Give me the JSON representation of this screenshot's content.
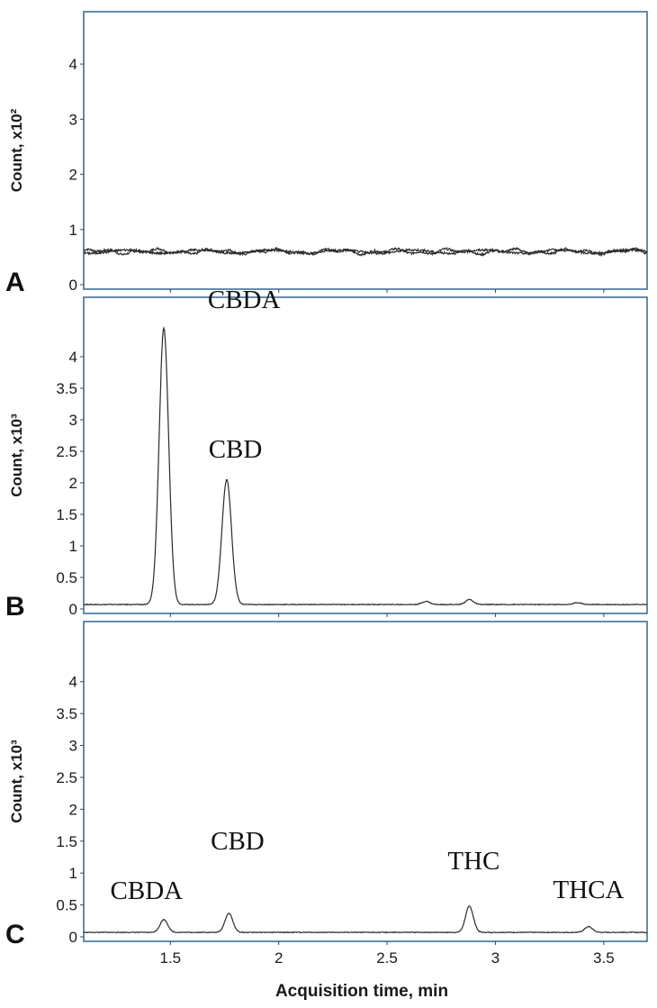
{
  "chart_data": [
    {
      "type": "line",
      "panel_letter": "A",
      "ylabel": "Count, x10²",
      "xlabel": "",
      "xlim": [
        1.1,
        3.7
      ],
      "ylim": [
        0,
        4.9
      ],
      "yticks": [
        "0",
        "1",
        "2",
        "3",
        "4"
      ],
      "ytick_values": [
        0,
        1,
        2,
        3,
        4
      ],
      "baseline": 0.6,
      "peaks": [],
      "series": [
        {
          "values": "flat noisy baseline ~0.6"
        }
      ]
    },
    {
      "type": "line",
      "panel_letter": "B",
      "ylabel": "Count, x10³",
      "xlabel": "",
      "xlim": [
        1.1,
        3.7
      ],
      "ylim": [
        0,
        4.9
      ],
      "yticks": [
        "0",
        "0.5",
        "1",
        "1.5",
        "2",
        "2.5",
        "3",
        "3.5",
        "4"
      ],
      "ytick_values": [
        0,
        0.5,
        1,
        1.5,
        2,
        2.5,
        3,
        3.5,
        4
      ],
      "baseline": 0.07,
      "peaks": [
        {
          "label": "CBDA",
          "x": 1.47,
          "y": 4.45
        },
        {
          "label": "CBD",
          "x": 1.76,
          "y": 2.05
        },
        {
          "label": "",
          "x": 2.68,
          "y": 0.12
        },
        {
          "label": "",
          "x": 2.88,
          "y": 0.15
        },
        {
          "label": "",
          "x": 3.38,
          "y": 0.1
        }
      ]
    },
    {
      "type": "line",
      "panel_letter": "C",
      "ylabel": "Count, x10³",
      "xlabel": "Acquisition time, min",
      "xlim": [
        1.1,
        3.7
      ],
      "ylim": [
        0,
        4.9
      ],
      "yticks": [
        "0",
        "0.5",
        "1",
        "1.5",
        "2",
        "2.5",
        "3",
        "3.5",
        "4"
      ],
      "ytick_values": [
        0,
        0.5,
        1,
        1.5,
        2,
        2.5,
        3,
        3.5,
        4
      ],
      "xticks": [
        "1.5",
        "2",
        "2.5",
        "3",
        "3.5"
      ],
      "xtick_values": [
        1.5,
        2,
        2.5,
        3,
        3.5
      ],
      "baseline": 0.07,
      "peaks": [
        {
          "label": "CBDA",
          "x": 1.47,
          "y": 0.27
        },
        {
          "label": "CBD",
          "x": 1.77,
          "y": 0.37
        },
        {
          "label": "THC",
          "x": 2.88,
          "y": 0.48
        },
        {
          "label": "THCA",
          "x": 3.43,
          "y": 0.16
        }
      ]
    }
  ],
  "colors": {
    "frame": "#3f6e9a",
    "trace": "#2a2a2a"
  }
}
